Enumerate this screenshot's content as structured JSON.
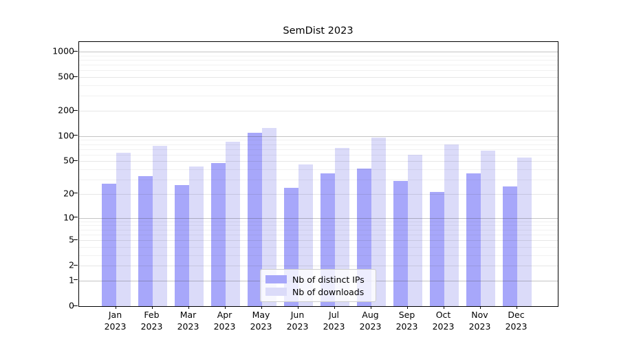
{
  "title": "SemDist 2023",
  "colors": {
    "bar_ips": "#a7a7fa",
    "bar_downloads": "#dbdbf9",
    "grid_major": "rgba(60,60,60,0.30)",
    "grid_labeled": "rgba(60,60,60,0.13)",
    "grid_minor": "rgba(60,60,60,0.07)",
    "axis": "#000000"
  },
  "legend": {
    "entries": [
      {
        "label": "Nb of distinct IPs",
        "color_key": "bar_ips"
      },
      {
        "label": "Nb of downloads",
        "color_key": "bar_downloads"
      }
    ]
  },
  "chart_data": {
    "type": "bar",
    "title": "SemDist 2023",
    "xlabel": "",
    "ylabel": "",
    "y_scale": "log1p",
    "ylim": [
      0,
      1300
    ],
    "grid": true,
    "legend_position": "lower center",
    "categories": [
      "Jan 2023",
      "Feb 2023",
      "Mar 2023",
      "Apr 2023",
      "May 2023",
      "Jun 2023",
      "Jul 2023",
      "Aug 2023",
      "Sep 2023",
      "Oct 2023",
      "Nov 2023",
      "Dec 2023"
    ],
    "x_tick_line1": [
      "Jan",
      "Feb",
      "Mar",
      "Apr",
      "May",
      "Jun",
      "Jul",
      "Aug",
      "Sep",
      "Oct",
      "Nov",
      "Dec"
    ],
    "x_tick_line2": [
      "2023",
      "2023",
      "2023",
      "2023",
      "2023",
      "2023",
      "2023",
      "2023",
      "2023",
      "2023",
      "2023",
      "2023"
    ],
    "y_ticks": [
      0,
      1,
      2,
      5,
      10,
      20,
      50,
      100,
      200,
      500,
      1000
    ],
    "series": [
      {
        "name": "Nb of distinct IPs",
        "values": [
          27,
          33,
          26,
          48,
          110,
          24,
          36,
          41,
          29,
          21,
          36,
          25
        ]
      },
      {
        "name": "Nb of downloads",
        "values": [
          63,
          77,
          43,
          86,
          125,
          46,
          73,
          96,
          60,
          80,
          67,
          56
        ]
      }
    ]
  }
}
